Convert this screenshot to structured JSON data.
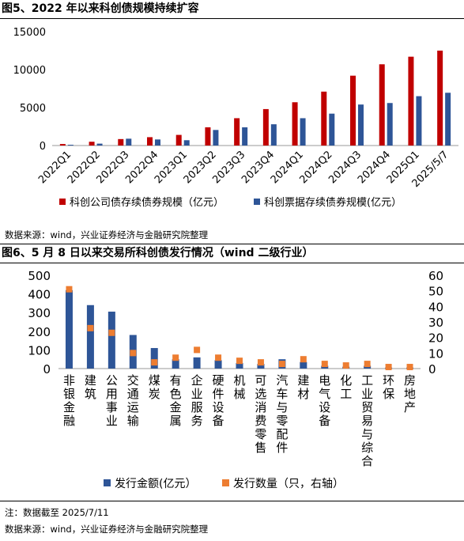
{
  "figure1": {
    "title": "图5、2022 年以来科创债规模持续扩容",
    "source": "数据来源：wind，兴业证券经济与金融研究院整理"
  },
  "figure2": {
    "title": "图6、5 月 8 日以来交易所科创债发行情况（wind 二级行业）",
    "note": "注：数据截至 2025/7/11",
    "source": "数据来源：wind，兴业证券经济与金融研究院整理"
  },
  "colors": {
    "red": "#C00000",
    "blue": "#2E5597",
    "orange": "#ED7D31"
  },
  "chart_data": [
    {
      "type": "bar",
      "categories": [
        "2022Q1",
        "2022Q2",
        "2022Q3",
        "2022Q4",
        "2023Q1",
        "2023Q2",
        "2023Q3",
        "2023Q4",
        "2024Q1",
        "2024Q2",
        "2024Q3",
        "2024Q4",
        "2025Q1",
        "2025/5/7"
      ],
      "series": [
        {
          "name": "科创公司债存续债券规模（亿元）",
          "color": "#C00000",
          "values": [
            200,
            500,
            850,
            1100,
            1400,
            2400,
            3600,
            4800,
            5700,
            7100,
            9200,
            10700,
            11700,
            12500
          ]
        },
        {
          "name": "科创票据存续债券规模(亿元）",
          "color": "#2E5597",
          "values": [
            100,
            250,
            900,
            800,
            700,
            2050,
            2400,
            2800,
            3600,
            4200,
            5400,
            5600,
            6500,
            6950
          ]
        }
      ],
      "ylim": [
        0,
        15000
      ],
      "yticks": [
        0,
        5000,
        10000,
        15000
      ],
      "legend_position": "bottom"
    },
    {
      "type": "bar+scatter",
      "categories": [
        "非银金融",
        "建筑",
        "公用事业",
        "交通运输",
        "煤炭",
        "有色金属",
        "企业服务",
        "硬件设备",
        "机械",
        "可选消费零售",
        "汽车与零配件",
        "建材",
        "电气设备",
        "化工",
        "工业贸易与综合",
        "环保",
        "房地产"
      ],
      "series": [
        {
          "name": "发行金额(亿元）",
          "axis": "left",
          "mark": "bar",
          "color": "#2E5597",
          "values": [
            420,
            340,
            305,
            180,
            110,
            50,
            60,
            45,
            30,
            25,
            50,
            35,
            15,
            10,
            15,
            5,
            5
          ]
        },
        {
          "name": "发行数量（只，右轴）",
          "axis": "right",
          "mark": "square",
          "color": "#ED7D31",
          "values": [
            51,
            26,
            23,
            10,
            4,
            7,
            12,
            7,
            5,
            4,
            3,
            6,
            3,
            2,
            3,
            1,
            1
          ]
        }
      ],
      "ylim_left": [
        0,
        500
      ],
      "yticks_left": [
        0,
        100,
        200,
        300,
        400,
        500
      ],
      "ylim_right": [
        0,
        60
      ],
      "yticks_right": [
        0,
        10,
        20,
        30,
        40,
        50,
        60
      ],
      "legend_position": "bottom"
    }
  ]
}
